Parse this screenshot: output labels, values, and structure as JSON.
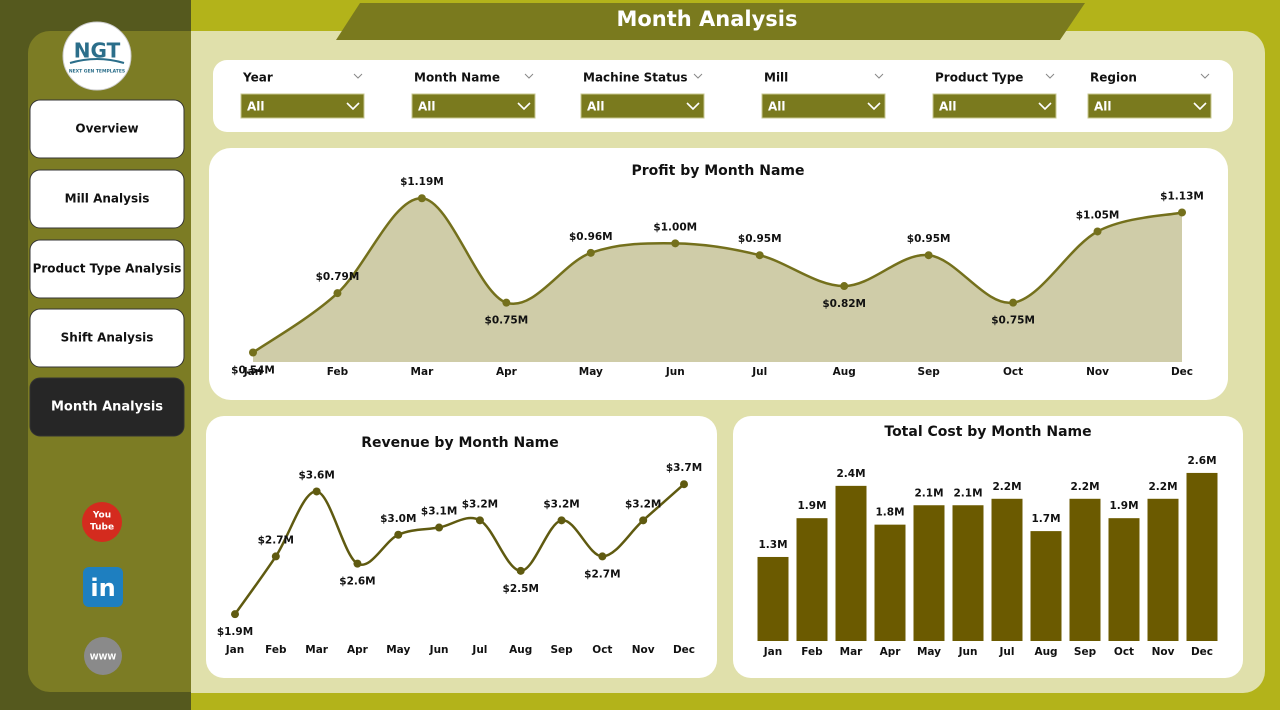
{
  "header": {
    "title": "Month Analysis"
  },
  "logo": {
    "text": "NGT",
    "subtitle": "NEXT GEN TEMPLATES"
  },
  "nav": {
    "items": [
      "Overview",
      "Mill Analysis",
      "Product Type Analysis",
      "Shift Analysis",
      "Month Analysis"
    ],
    "active": 4
  },
  "filters": [
    {
      "label": "Year",
      "value": "All"
    },
    {
      "label": "Month Name",
      "value": "All"
    },
    {
      "label": "Machine Status",
      "value": "All"
    },
    {
      "label": "Mill",
      "value": "All"
    },
    {
      "label": "Product Type",
      "value": "All"
    },
    {
      "label": "Region",
      "value": "All"
    }
  ],
  "icons": {
    "youtube_top": "You",
    "youtube_bottom": "Tube",
    "linkedin": "in",
    "web": "WWW"
  },
  "chart_data": [
    {
      "type": "area",
      "title": "Profit by Month Name",
      "categories": [
        "Jan",
        "Feb",
        "Mar",
        "Apr",
        "May",
        "Jun",
        "Jul",
        "Aug",
        "Sep",
        "Oct",
        "Nov",
        "Dec"
      ],
      "values": [
        0.54,
        0.79,
        1.19,
        0.75,
        0.96,
        1,
        0.95,
        0.82,
        0.95,
        0.75,
        1.05,
        1.13
      ],
      "value_labels": [
        "$0.54M",
        "$0.79M",
        "$1.19M",
        "$0.75M",
        "$0.96M",
        "$1.00M",
        "$0.95M",
        "$0.82M",
        "$0.95M",
        "$0.75M",
        "$1.05M",
        "$1.13M"
      ],
      "color": "#74701c",
      "fill": "#cfcca8",
      "ylim": [
        0.5,
        1.25
      ]
    },
    {
      "type": "line",
      "title": "Revenue by Month Name",
      "categories": [
        "Jan",
        "Feb",
        "Mar",
        "Apr",
        "May",
        "Jun",
        "Jul",
        "Aug",
        "Sep",
        "Oct",
        "Nov",
        "Dec"
      ],
      "values": [
        1.9,
        2.7,
        3.6,
        2.6,
        3.0,
        3.1,
        3.2,
        2.5,
        3.2,
        2.7,
        3.2,
        3.7
      ],
      "value_labels": [
        "$1.9M",
        "$2.7M",
        "$3.6M",
        "$2.6M",
        "$3.0M",
        "$3.1M",
        "$3.2M",
        "$2.5M",
        "$3.2M",
        "$2.7M",
        "$3.2M",
        "$3.7M"
      ],
      "color": "#5f5a10",
      "ylim": [
        1.75,
        3.8
      ]
    },
    {
      "type": "bar",
      "title": "Total Cost by Month Name",
      "categories": [
        "Jan",
        "Feb",
        "Mar",
        "Apr",
        "May",
        "Jun",
        "Jul",
        "Aug",
        "Sep",
        "Oct",
        "Nov",
        "Dec"
      ],
      "values": [
        1.3,
        1.9,
        2.4,
        1.8,
        2.1,
        2.1,
        2.2,
        1.7,
        2.2,
        1.9,
        2.2,
        2.6
      ],
      "value_labels": [
        "1.3M",
        "1.9M",
        "2.4M",
        "1.8M",
        "2.1M",
        "2.1M",
        "2.2M",
        "1.7M",
        "2.2M",
        "1.9M",
        "2.2M",
        "2.6M"
      ],
      "color": "#6b5a00",
      "ylim": [
        0,
        2.8
      ]
    }
  ]
}
